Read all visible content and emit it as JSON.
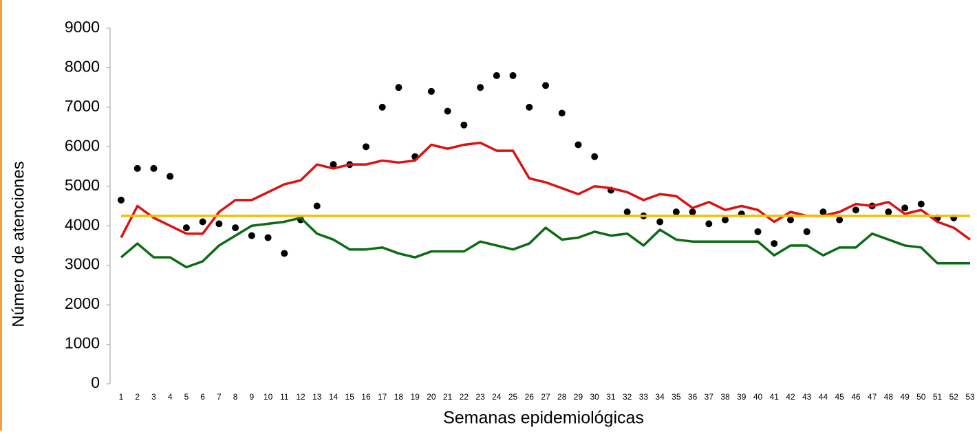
{
  "chart_data": {
    "type": "line",
    "ylabel": "Número de atenciones",
    "xlabel": "Semanas epidemiológicas",
    "categories": [
      "1",
      "2",
      "3",
      "4",
      "5",
      "6",
      "7",
      "8",
      "9",
      "10",
      "11",
      "12",
      "13",
      "14",
      "15",
      "16",
      "17",
      "18",
      "19",
      "20",
      "21",
      "22",
      "23",
      "24",
      "25",
      "26",
      "27",
      "28",
      "29",
      "30",
      "31",
      "32",
      "33",
      "34",
      "35",
      "36",
      "37",
      "38",
      "39",
      "40",
      "41",
      "42",
      "43",
      "44",
      "45",
      "46",
      "47",
      "48",
      "49",
      "50",
      "51",
      "52",
      "53"
    ],
    "series": [
      {
        "color": "#000000",
        "style": "markers",
        "values": [
          4650,
          5450,
          5450,
          5250,
          3950,
          4100,
          4050,
          3950,
          3750,
          3700,
          3300,
          4150,
          4500,
          5550,
          5550,
          6000,
          7000,
          7500,
          5750,
          7400,
          6900,
          6550,
          7500,
          7800,
          7800,
          7000,
          7550,
          6850,
          6050,
          5750,
          4900,
          4350,
          4250,
          4100,
          4350,
          4350,
          4050,
          4150,
          4300,
          3850,
          3550,
          4150,
          3850,
          4350,
          4150,
          4400,
          4500,
          4350,
          4450,
          4550,
          4200,
          4200,
          null
        ]
      },
      {
        "color": "#dd1111",
        "style": "line",
        "values": [
          3700,
          4500,
          4200,
          4000,
          3800,
          3800,
          4350,
          4650,
          4650,
          4850,
          5050,
          5150,
          5550,
          5450,
          5550,
          5550,
          5650,
          5600,
          5650,
          6050,
          5950,
          6050,
          6100,
          5900,
          5900,
          5200,
          5100,
          4950,
          4800,
          5000,
          4950,
          4850,
          4650,
          4800,
          4750,
          4450,
          4600,
          4400,
          4500,
          4400,
          4100,
          4350,
          4250,
          4250,
          4350,
          4550,
          4500,
          4600,
          4300,
          4400,
          4100,
          3950,
          3650
        ]
      },
      {
        "color": "#0c6b12",
        "style": "line",
        "values": [
          3200,
          3550,
          3200,
          3200,
          2950,
          3100,
          3500,
          3750,
          4000,
          4050,
          4100,
          4200,
          3800,
          3650,
          3400,
          3400,
          3450,
          3300,
          3200,
          3350,
          3350,
          3350,
          3600,
          3500,
          3400,
          3550,
          3950,
          3650,
          3700,
          3850,
          3750,
          3800,
          3500,
          3900,
          3650,
          3600,
          3600,
          3600,
          3600,
          3600,
          3250,
          3500,
          3500,
          3250,
          3450,
          3450,
          3800,
          3650,
          3500,
          3450,
          3050,
          3050,
          3050
        ]
      },
      {
        "color": "#f5c000",
        "style": "line",
        "values": [
          4250,
          4250,
          4250,
          4250,
          4250,
          4250,
          4250,
          4250,
          4250,
          4250,
          4250,
          4250,
          4250,
          4250,
          4250,
          4250,
          4250,
          4250,
          4250,
          4250,
          4250,
          4250,
          4250,
          4250,
          4250,
          4250,
          4250,
          4250,
          4250,
          4250,
          4250,
          4250,
          4250,
          4250,
          4250,
          4250,
          4250,
          4250,
          4250,
          4250,
          4250,
          4250,
          4250,
          4250,
          4250,
          4250,
          4250,
          4250,
          4250,
          4250,
          4250,
          4250,
          4250
        ]
      }
    ],
    "ylim": [
      0,
      9000
    ],
    "yticks": [
      0,
      1000,
      2000,
      3000,
      4000,
      5000,
      6000,
      7000,
      8000,
      9000
    ],
    "grid": false
  }
}
